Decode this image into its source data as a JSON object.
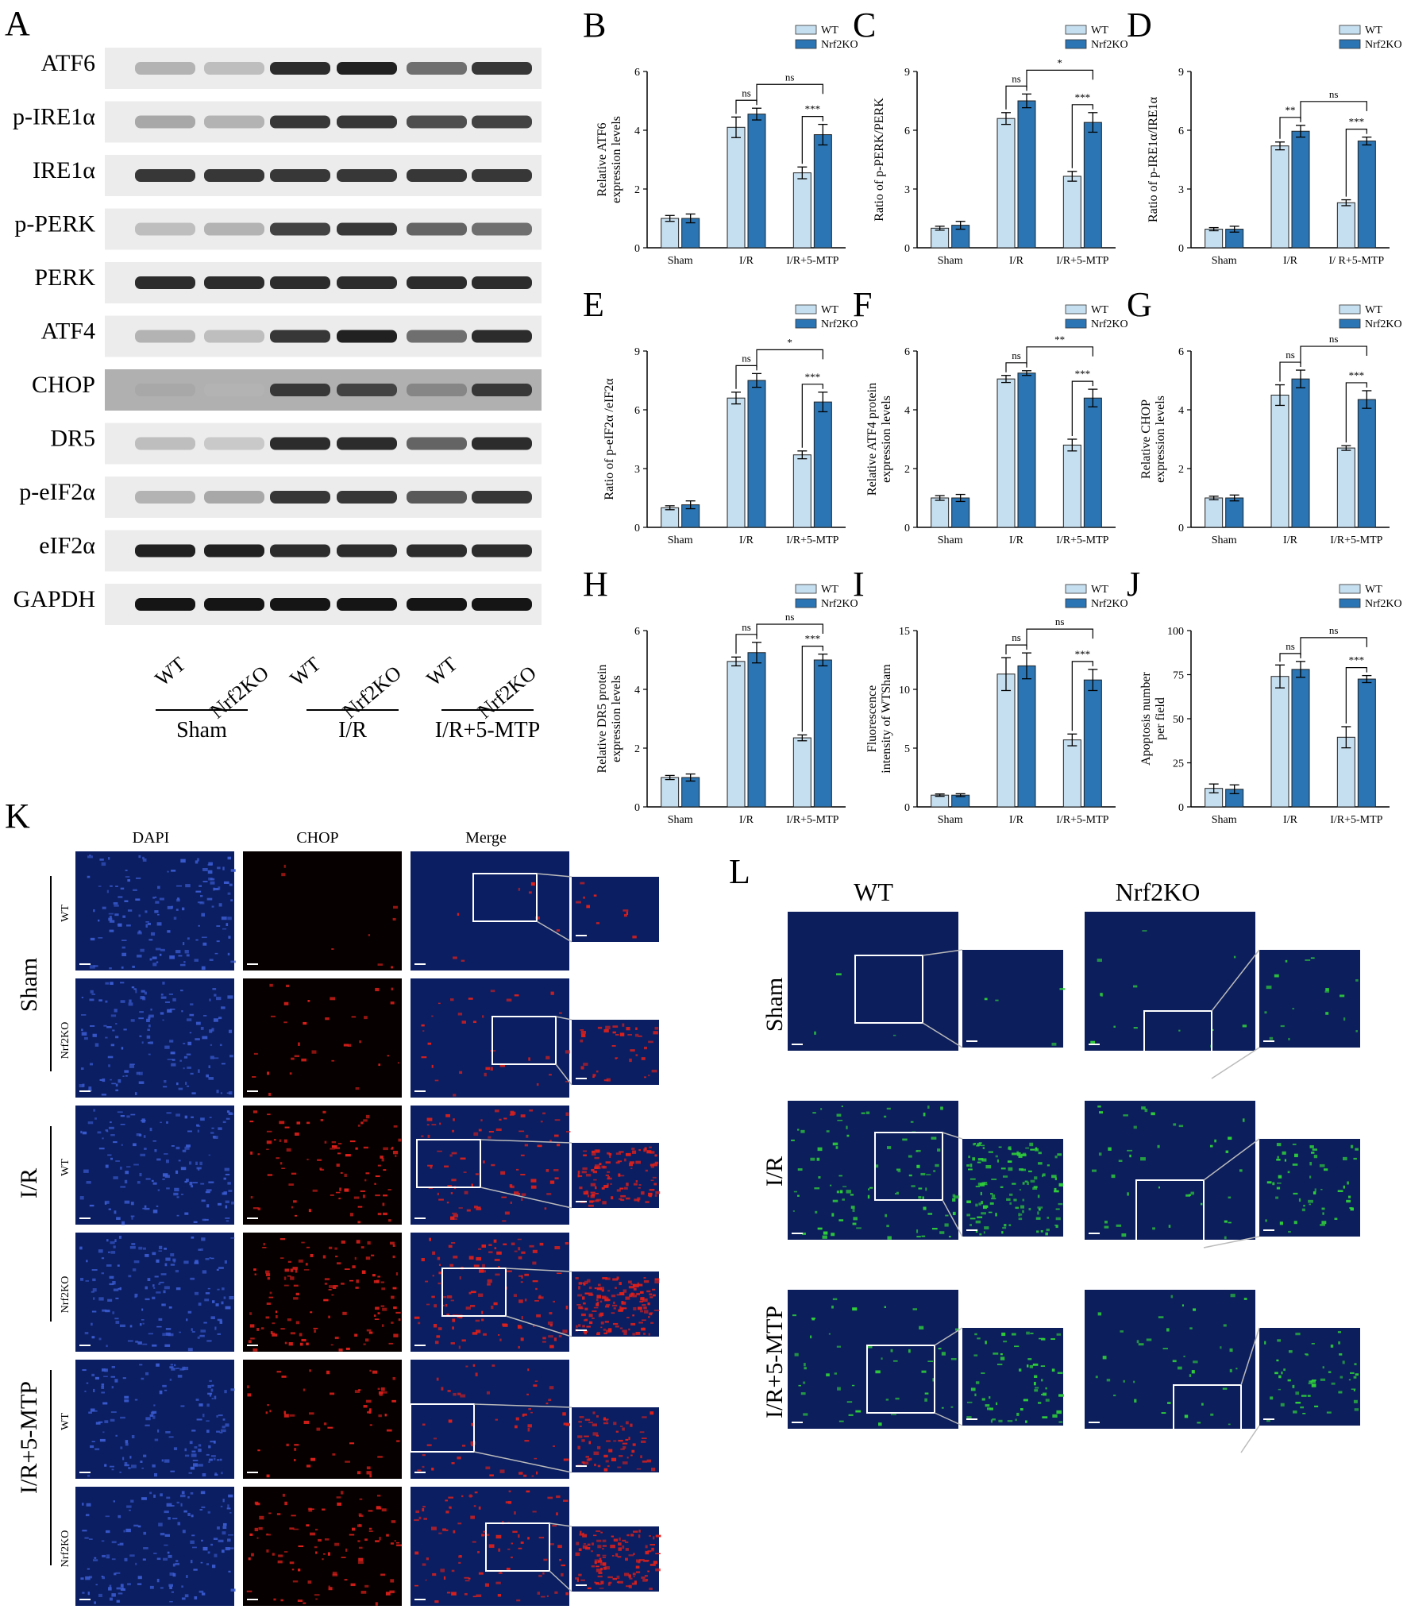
{
  "panel_letters": [
    "A",
    "B",
    "C",
    "D",
    "E",
    "F",
    "G",
    "H",
    "I",
    "J",
    "K",
    "L"
  ],
  "blot": {
    "rows": [
      "ATF6",
      "p-IRE1α",
      "IRE1α",
      "p-PERK",
      "PERK",
      "ATF4",
      "CHOP",
      "DR5",
      "p-eIF2α",
      "eIF2α",
      "GAPDH"
    ],
    "lane_labels": [
      "WT",
      "Nrf2KO",
      "WT",
      "Nrf2KO",
      "WT",
      "Nrf2KO"
    ],
    "groups": [
      "Sham",
      "I/R",
      "I/R+5-MTP"
    ],
    "band_intensity": [
      [
        0.25,
        0.2,
        0.85,
        0.9,
        0.55,
        0.8
      ],
      [
        0.3,
        0.25,
        0.8,
        0.8,
        0.7,
        0.75
      ],
      [
        0.8,
        0.8,
        0.8,
        0.8,
        0.8,
        0.8
      ],
      [
        0.2,
        0.25,
        0.75,
        0.8,
        0.6,
        0.55
      ],
      [
        0.85,
        0.85,
        0.85,
        0.85,
        0.85,
        0.85
      ],
      [
        0.25,
        0.2,
        0.8,
        0.9,
        0.55,
        0.85
      ],
      [
        0.3,
        0.25,
        0.8,
        0.75,
        0.45,
        0.8
      ],
      [
        0.2,
        0.15,
        0.85,
        0.85,
        0.6,
        0.85
      ],
      [
        0.25,
        0.3,
        0.8,
        0.8,
        0.65,
        0.8
      ],
      [
        0.9,
        0.9,
        0.85,
        0.85,
        0.85,
        0.85
      ],
      [
        0.95,
        0.95,
        0.95,
        0.95,
        0.95,
        0.95
      ]
    ]
  },
  "legend": {
    "wt": "WT",
    "ko": "Nrf2KO"
  },
  "colors": {
    "wt": "#c6dff0",
    "ko": "#2b75b4"
  },
  "chart_data": [
    {
      "panel": "B",
      "type": "bar",
      "ylabel": "Relative ATF6 expression levels",
      "categories": [
        "Sham",
        "I/R",
        "I/R+5-MTP"
      ],
      "ylim": [
        0,
        6
      ],
      "yticks": [
        0,
        2,
        4,
        6
      ],
      "series": [
        {
          "name": "WT",
          "values": [
            1.0,
            4.1,
            2.55
          ],
          "errors": [
            0.1,
            0.35,
            0.2
          ]
        },
        {
          "name": "Nrf2KO",
          "values": [
            1.0,
            4.55,
            3.85
          ],
          "errors": [
            0.15,
            0.2,
            0.35
          ]
        }
      ],
      "comparisons": [
        {
          "from": [
            "I/R",
            "WT"
          ],
          "to": [
            "I/R",
            "Nrf2KO"
          ],
          "label": "ns"
        },
        {
          "from": [
            "I/R+5-MTP",
            "WT"
          ],
          "to": [
            "I/R+5-MTP",
            "Nrf2KO"
          ],
          "label": "***"
        },
        {
          "from": [
            "I/R",
            "Nrf2KO"
          ],
          "to": [
            "I/R+5-MTP",
            "Nrf2KO"
          ],
          "label": "ns"
        }
      ]
    },
    {
      "panel": "C",
      "type": "bar",
      "ylabel": "Ratio of p-PERK/PERK",
      "categories": [
        "Sham",
        "I/R",
        "I/R+5-MTP"
      ],
      "ylim": [
        0,
        9
      ],
      "yticks": [
        0,
        3,
        6,
        9
      ],
      "series": [
        {
          "name": "WT",
          "values": [
            1.0,
            6.6,
            3.65
          ],
          "errors": [
            0.1,
            0.3,
            0.25
          ]
        },
        {
          "name": "Nrf2KO",
          "values": [
            1.15,
            7.5,
            6.4
          ],
          "errors": [
            0.2,
            0.35,
            0.5
          ]
        }
      ],
      "comparisons": [
        {
          "from": [
            "I/R",
            "WT"
          ],
          "to": [
            "I/R",
            "Nrf2KO"
          ],
          "label": "ns"
        },
        {
          "from": [
            "I/R+5-MTP",
            "WT"
          ],
          "to": [
            "I/R+5-MTP",
            "Nrf2KO"
          ],
          "label": "***"
        },
        {
          "from": [
            "I/R",
            "Nrf2KO"
          ],
          "to": [
            "I/R+5-MTP",
            "Nrf2KO"
          ],
          "label": "*"
        }
      ]
    },
    {
      "panel": "D",
      "type": "bar",
      "ylabel": "Ratio of p-IRE1α/IRE1α",
      "categories": [
        "Sham",
        "I/R",
        "I/ R+5-MTP"
      ],
      "ylim": [
        0,
        9
      ],
      "yticks": [
        0,
        3,
        6,
        9
      ],
      "series": [
        {
          "name": "WT",
          "values": [
            0.95,
            5.2,
            2.3
          ],
          "errors": [
            0.08,
            0.2,
            0.15
          ]
        },
        {
          "name": "Nrf2KO",
          "values": [
            0.95,
            5.95,
            5.45
          ],
          "errors": [
            0.15,
            0.3,
            0.2
          ]
        }
      ],
      "comparisons": [
        {
          "from": [
            "I/R",
            "WT"
          ],
          "to": [
            "I/R",
            "Nrf2KO"
          ],
          "label": "**"
        },
        {
          "from": [
            "I/ R+5-MTP",
            "WT"
          ],
          "to": [
            "I/ R+5-MTP",
            "Nrf2KO"
          ],
          "label": "***"
        },
        {
          "from": [
            "I/R",
            "Nrf2KO"
          ],
          "to": [
            "I/ R+5-MTP",
            "Nrf2KO"
          ],
          "label": "ns"
        }
      ]
    },
    {
      "panel": "E",
      "type": "bar",
      "ylabel": "Ratio of p-eIF2α /eIF2α",
      "categories": [
        "Sham",
        "I/R",
        "I/R+5-MTP"
      ],
      "ylim": [
        0,
        9
      ],
      "yticks": [
        0,
        3,
        6,
        9
      ],
      "series": [
        {
          "name": "WT",
          "values": [
            1.0,
            6.6,
            3.7
          ],
          "errors": [
            0.1,
            0.3,
            0.2
          ]
        },
        {
          "name": "Nrf2KO",
          "values": [
            1.15,
            7.5,
            6.4
          ],
          "errors": [
            0.2,
            0.35,
            0.5
          ]
        }
      ],
      "comparisons": [
        {
          "from": [
            "I/R",
            "WT"
          ],
          "to": [
            "I/R",
            "Nrf2KO"
          ],
          "label": "ns"
        },
        {
          "from": [
            "I/R+5-MTP",
            "WT"
          ],
          "to": [
            "I/R+5-MTP",
            "Nrf2KO"
          ],
          "label": "***"
        },
        {
          "from": [
            "I/R",
            "Nrf2KO"
          ],
          "to": [
            "I/R+5-MTP",
            "Nrf2KO"
          ],
          "label": "*"
        }
      ]
    },
    {
      "panel": "F",
      "type": "bar",
      "ylabel": "Relative ATF4 protein expression levels",
      "categories": [
        "Sham",
        "I/R",
        "I/R+5-MTP"
      ],
      "ylim": [
        0,
        6
      ],
      "yticks": [
        0,
        2,
        4,
        6
      ],
      "series": [
        {
          "name": "WT",
          "values": [
            1.0,
            5.05,
            2.8
          ],
          "errors": [
            0.08,
            0.12,
            0.2
          ]
        },
        {
          "name": "Nrf2KO",
          "values": [
            1.0,
            5.25,
            4.4
          ],
          "errors": [
            0.12,
            0.08,
            0.3
          ]
        }
      ],
      "comparisons": [
        {
          "from": [
            "I/R",
            "WT"
          ],
          "to": [
            "I/R",
            "Nrf2KO"
          ],
          "label": "ns"
        },
        {
          "from": [
            "I/R+5-MTP",
            "WT"
          ],
          "to": [
            "I/R+5-MTP",
            "Nrf2KO"
          ],
          "label": "***"
        },
        {
          "from": [
            "I/R",
            "Nrf2KO"
          ],
          "to": [
            "I/R+5-MTP",
            "Nrf2KO"
          ],
          "label": "**"
        }
      ]
    },
    {
      "panel": "G",
      "type": "bar",
      "ylabel": "Relative CHOP expression levels",
      "categories": [
        "Sham",
        "I/R",
        "I/R+5-MTP"
      ],
      "ylim": [
        0,
        6
      ],
      "yticks": [
        0,
        2,
        4,
        6
      ],
      "series": [
        {
          "name": "WT",
          "values": [
            1.0,
            4.5,
            2.7
          ],
          "errors": [
            0.06,
            0.35,
            0.08
          ]
        },
        {
          "name": "Nrf2KO",
          "values": [
            1.0,
            5.05,
            4.35
          ],
          "errors": [
            0.1,
            0.3,
            0.3
          ]
        }
      ],
      "comparisons": [
        {
          "from": [
            "I/R",
            "WT"
          ],
          "to": [
            "I/R",
            "Nrf2KO"
          ],
          "label": "ns"
        },
        {
          "from": [
            "I/R+5-MTP",
            "WT"
          ],
          "to": [
            "I/R+5-MTP",
            "Nrf2KO"
          ],
          "label": "***"
        },
        {
          "from": [
            "I/R",
            "Nrf2KO"
          ],
          "to": [
            "I/R+5-MTP",
            "Nrf2KO"
          ],
          "label": "ns"
        }
      ]
    },
    {
      "panel": "H",
      "type": "bar",
      "ylabel": "Relative DR5 protein expression levels",
      "categories": [
        "Sham",
        "I/R",
        "I/R+5-MTP"
      ],
      "ylim": [
        0,
        6
      ],
      "yticks": [
        0,
        2,
        4,
        6
      ],
      "series": [
        {
          "name": "WT",
          "values": [
            1.0,
            4.95,
            2.35
          ],
          "errors": [
            0.07,
            0.15,
            0.1
          ]
        },
        {
          "name": "Nrf2KO",
          "values": [
            1.0,
            5.25,
            5.0
          ],
          "errors": [
            0.12,
            0.35,
            0.2
          ]
        }
      ],
      "comparisons": [
        {
          "from": [
            "I/R",
            "WT"
          ],
          "to": [
            "I/R",
            "Nrf2KO"
          ],
          "label": "ns"
        },
        {
          "from": [
            "I/R+5-MTP",
            "WT"
          ],
          "to": [
            "I/R+5-MTP",
            "Nrf2KO"
          ],
          "label": "***"
        },
        {
          "from": [
            "I/R",
            "Nrf2KO"
          ],
          "to": [
            "I/R+5-MTP",
            "Nrf2KO"
          ],
          "label": "ns"
        }
      ]
    },
    {
      "panel": "I",
      "type": "bar",
      "ylabel": "Fluorescence intensity of WTSham",
      "categories": [
        "Sham",
        "I/R",
        "I/R+5-MTP"
      ],
      "ylim": [
        0,
        15
      ],
      "yticks": [
        0,
        5,
        10,
        15
      ],
      "series": [
        {
          "name": "WT",
          "values": [
            1.0,
            11.3,
            5.7
          ],
          "errors": [
            0.1,
            1.4,
            0.5
          ]
        },
        {
          "name": "Nrf2KO",
          "values": [
            1.0,
            12.0,
            10.8
          ],
          "errors": [
            0.12,
            1.1,
            0.9
          ]
        }
      ],
      "comparisons": [
        {
          "from": [
            "I/R",
            "WT"
          ],
          "to": [
            "I/R",
            "Nrf2KO"
          ],
          "label": "ns"
        },
        {
          "from": [
            "I/R+5-MTP",
            "WT"
          ],
          "to": [
            "I/R+5-MTP",
            "Nrf2KO"
          ],
          "label": "***"
        },
        {
          "from": [
            "I/R",
            "Nrf2KO"
          ],
          "to": [
            "I/R+5-MTP",
            "Nrf2KO"
          ],
          "label": "ns"
        }
      ]
    },
    {
      "panel": "J",
      "type": "bar",
      "ylabel": "Apoptosis number per field",
      "categories": [
        "Sham",
        "I/R",
        "I/R+5-MTP"
      ],
      "ylim": [
        0,
        100
      ],
      "yticks": [
        0,
        25,
        50,
        75,
        100
      ],
      "series": [
        {
          "name": "WT",
          "values": [
            10.5,
            74.0,
            39.5
          ],
          "errors": [
            2.5,
            6.5,
            6.0
          ]
        },
        {
          "name": "Nrf2KO",
          "values": [
            10.0,
            78.0,
            72.5
          ],
          "errors": [
            2.5,
            4.5,
            2.0
          ]
        }
      ],
      "comparisons": [
        {
          "from": [
            "I/R",
            "WT"
          ],
          "to": [
            "I/R",
            "Nrf2KO"
          ],
          "label": "ns"
        },
        {
          "from": [
            "I/R+5-MTP",
            "WT"
          ],
          "to": [
            "I/R+5-MTP",
            "Nrf2KO"
          ],
          "label": "***"
        },
        {
          "from": [
            "I/R",
            "Nrf2KO"
          ],
          "to": [
            "I/R+5-MTP",
            "Nrf2KO"
          ],
          "label": "ns"
        }
      ]
    }
  ],
  "panelK": {
    "columns": [
      "DAPI",
      "CHOP",
      "Merge"
    ],
    "groups": [
      "Sham",
      "I/R",
      "I/R+5-MTP"
    ],
    "rows": [
      "WT",
      "Nrf2KO",
      "WT",
      "Nrf2KO",
      "WT",
      "Nrf2KO"
    ],
    "chop_signal_density": [
      0.05,
      0.2,
      0.55,
      0.75,
      0.35,
      0.6
    ]
  },
  "panelL": {
    "columns": [
      "WT",
      "Nrf2KO"
    ],
    "rows": [
      "Sham",
      "I/R",
      "I/R+5-MTP"
    ],
    "tunel_signal_density": [
      [
        0.02,
        0.08
      ],
      [
        0.6,
        0.25
      ],
      [
        0.3,
        0.25
      ]
    ]
  }
}
